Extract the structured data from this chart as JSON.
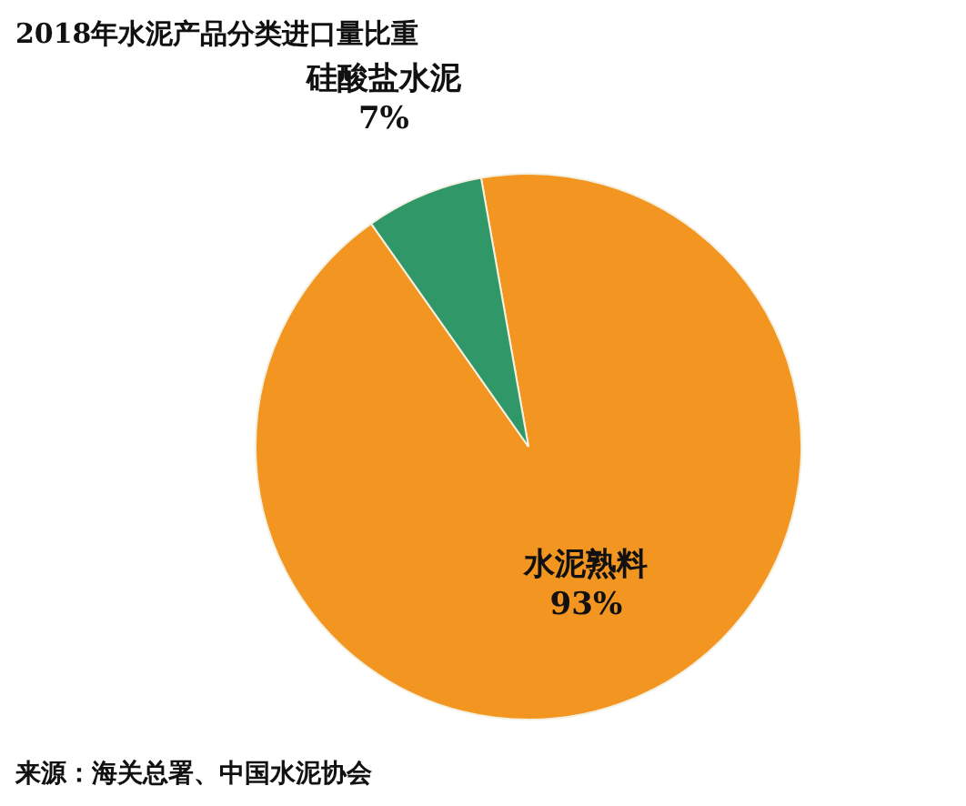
{
  "chart_data": {
    "type": "pie",
    "title": "2018年水泥产品分类进口量比重",
    "categories": [
      "水泥熟料",
      "硅酸盐水泥"
    ],
    "values": [
      93,
      7
    ],
    "colors": [
      "#f39621",
      "#2f9768"
    ],
    "value_labels": [
      "93%",
      "7%"
    ],
    "annotations": [
      "来源：海关总署、中国水泥协会"
    ]
  }
}
